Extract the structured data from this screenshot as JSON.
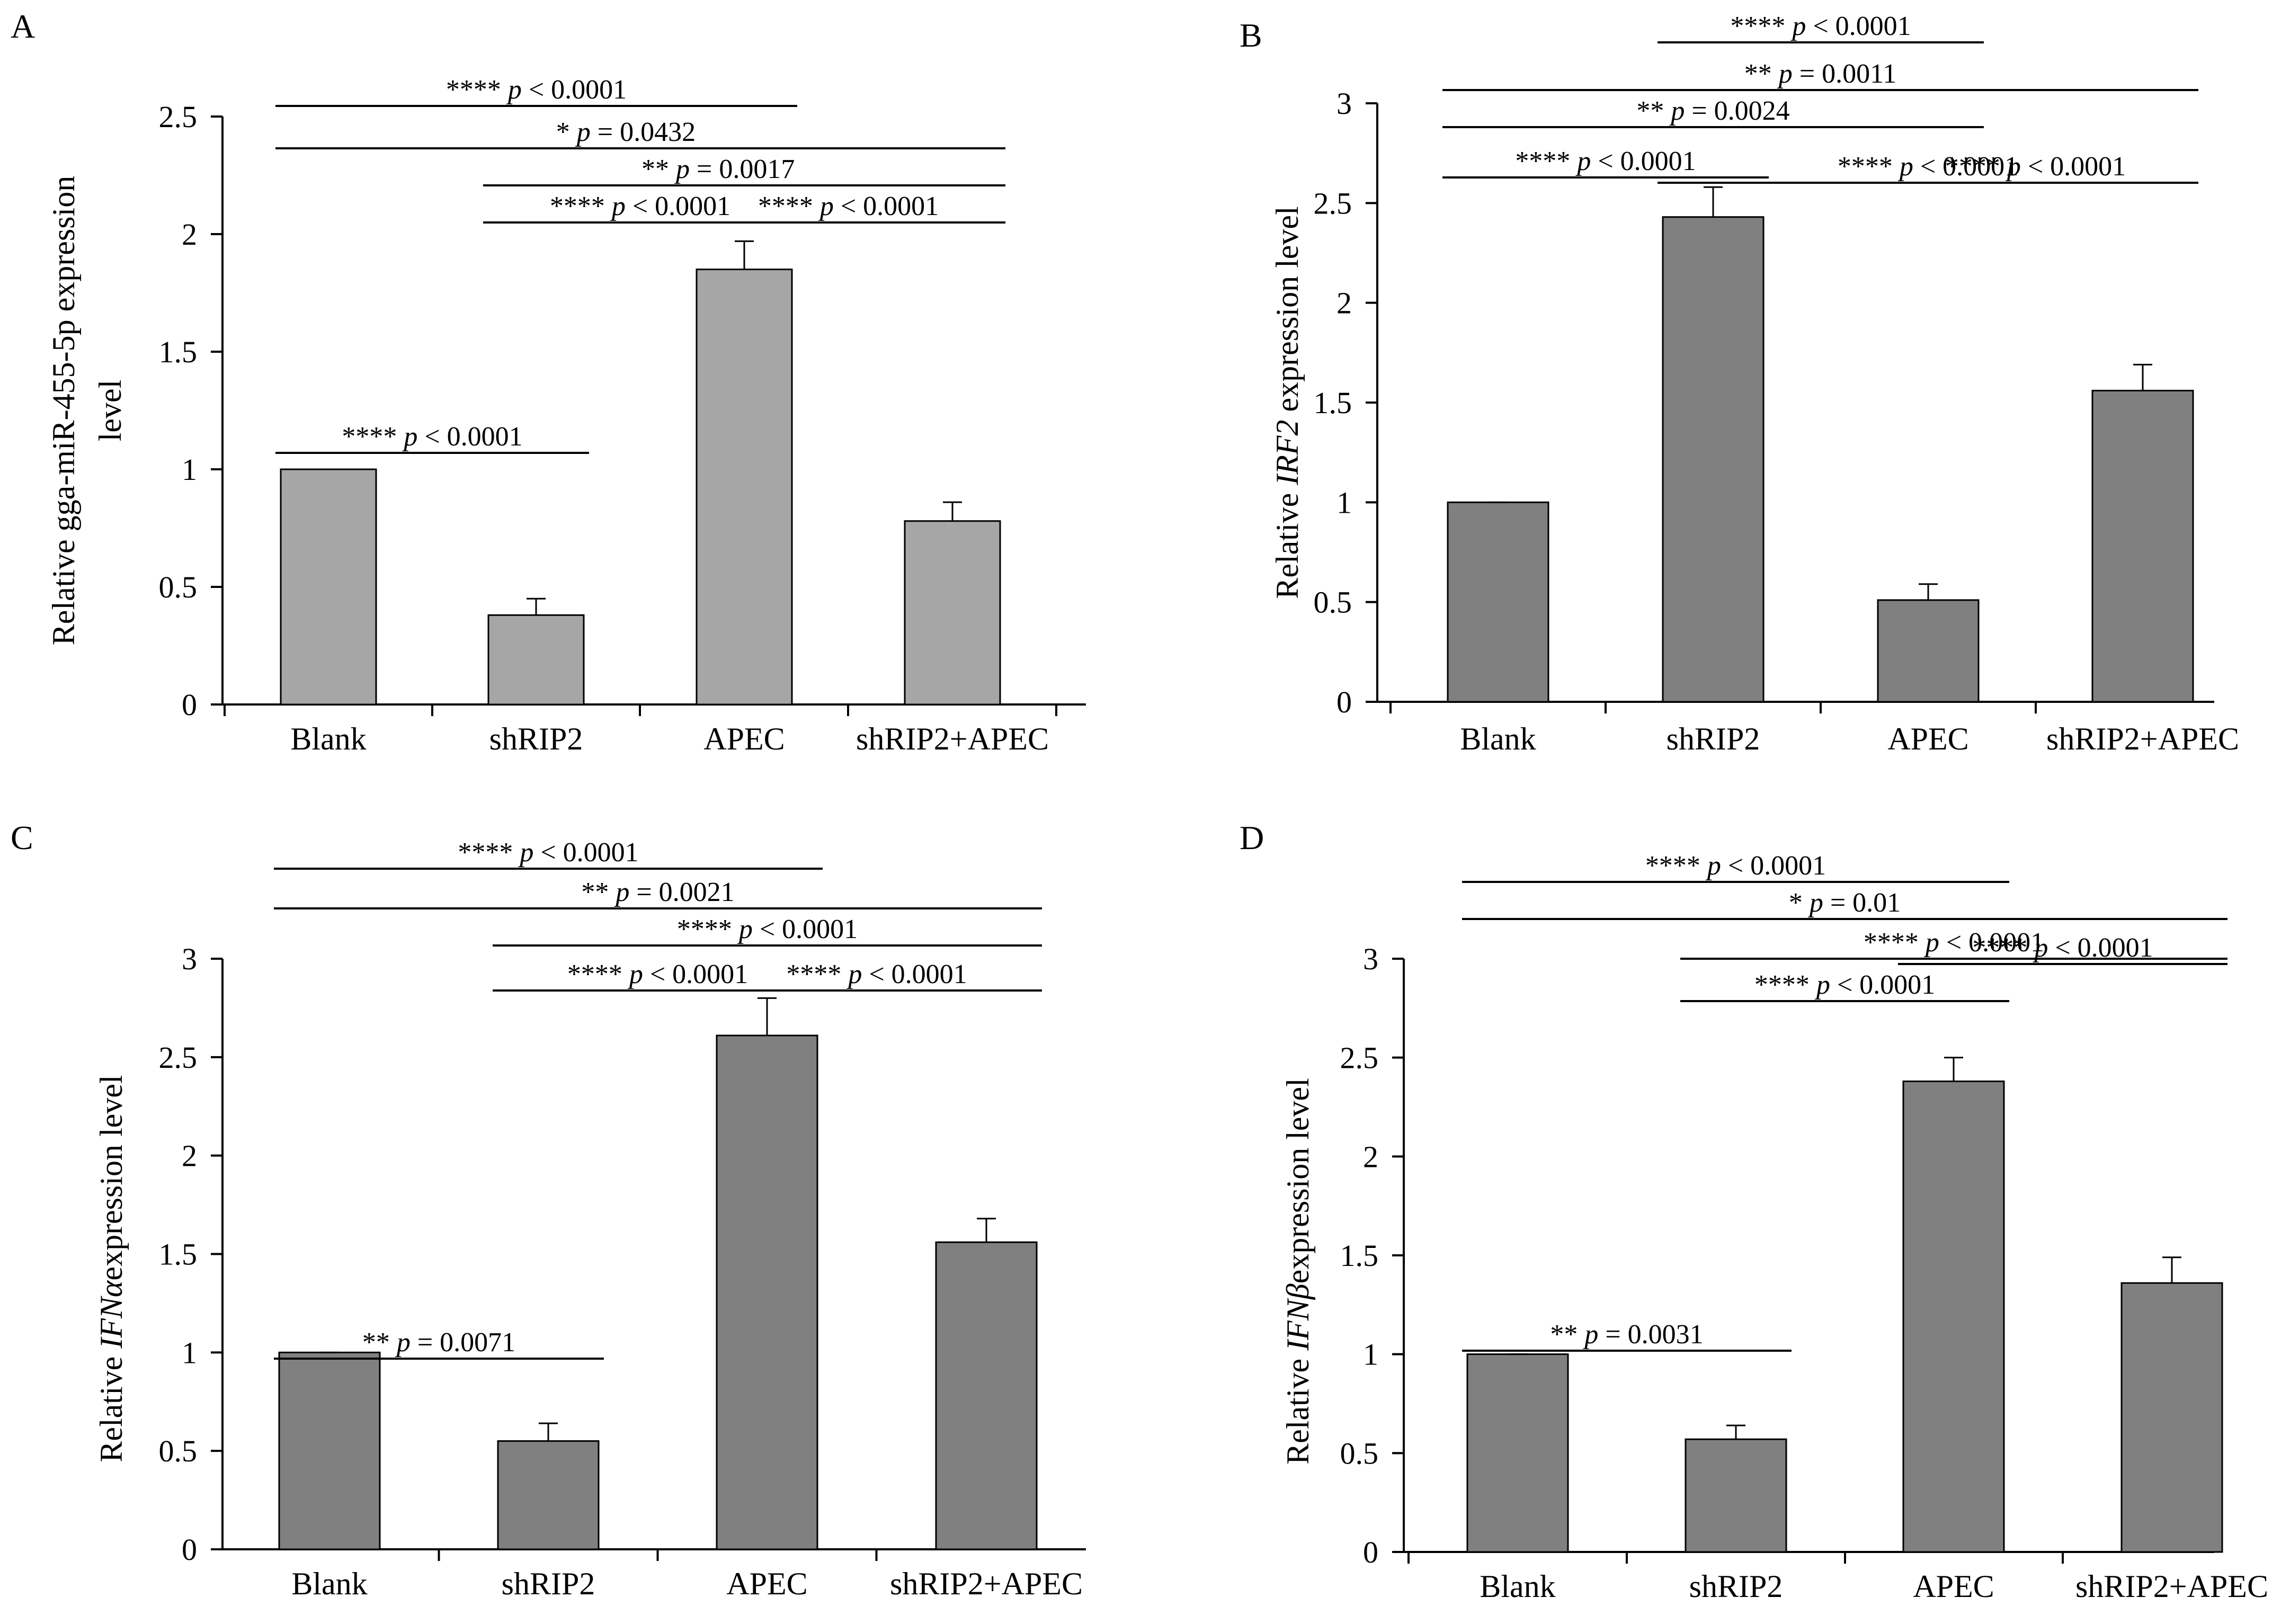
{
  "chart_data": [
    {
      "panel": "A",
      "type": "bar",
      "title": "",
      "xlabel": "",
      "ylabel_lines": [
        "Relative gga-miR-455-5p expression",
        "level"
      ],
      "ylabel_italic": "",
      "ylabel_after": "",
      "ylim": [
        0,
        2.5
      ],
      "yticks": [
        "0",
        "0.5",
        "1",
        "1.5",
        "2",
        "2.5"
      ],
      "ytick_values": [
        0,
        0.5,
        1,
        1.5,
        2,
        2.5
      ],
      "categories": [
        "Blank",
        "shRIP2",
        "APEC",
        "shRIP2+APEC"
      ],
      "values": [
        1.0,
        0.38,
        1.85,
        0.78
      ],
      "errors": [
        0.0,
        0.07,
        0.12,
        0.08
      ],
      "bar_color": "#a6a6a6",
      "comparisons": [
        {
          "stars": "****",
          "p": "p < 0.0001",
          "from": "Blank",
          "to": "APEC"
        },
        {
          "stars": "*",
          "p": "p = 0.0432",
          "from": "Blank",
          "to": "shRIP2+APEC"
        },
        {
          "stars": "**",
          "p": "p = 0.0017",
          "from": "shRIP2",
          "to": "shRIP2+APEC"
        },
        {
          "stars": "****",
          "p": "p < 0.0001",
          "from": "shRIP2",
          "to": "APEC"
        },
        {
          "stars": "****",
          "p": "p < 0.0001",
          "from": "APEC",
          "to": "shRIP2+APEC"
        },
        {
          "stars": "****",
          "p": "p < 0.0001",
          "from": "Blank",
          "to": "shRIP2"
        }
      ]
    },
    {
      "panel": "B",
      "type": "bar",
      "title": "",
      "xlabel": "",
      "ylabel_lines": [
        "Relative "
      ],
      "ylabel_italic": "IRF2",
      "ylabel_after": " expression level",
      "ylim": [
        0,
        3
      ],
      "yticks": [
        "0",
        "0.5",
        "1",
        "1.5",
        "2",
        "2.5",
        "3"
      ],
      "ytick_values": [
        0,
        0.5,
        1,
        1.5,
        2,
        2.5,
        3
      ],
      "categories": [
        "Blank",
        "shRIP2",
        "APEC",
        "shRIP2+APEC"
      ],
      "values": [
        1.0,
        2.43,
        0.51,
        1.56
      ],
      "errors": [
        0.0,
        0.15,
        0.08,
        0.13
      ],
      "bar_color": "#808080",
      "comparisons": [
        {
          "stars": "****",
          "p": "p < 0.0001",
          "from": "shRIP2",
          "to": "APEC"
        },
        {
          "stars": "**",
          "p": "p = 0.0011",
          "from": "Blank",
          "to": "shRIP2+APEC"
        },
        {
          "stars": "**",
          "p": "p = 0.0024",
          "from": "Blank",
          "to": "APEC"
        },
        {
          "stars": "****",
          "p": "p < 0.0001",
          "from": "Blank",
          "to": "shRIP2"
        },
        {
          "stars": "****",
          "p": "p < 0.0001",
          "from": "shRIP2",
          "to": "shRIP2+APEC"
        },
        {
          "stars": "****",
          "p": "p < 0.0001",
          "from": "APEC",
          "to": "shRIP2+APEC"
        }
      ]
    },
    {
      "panel": "C",
      "type": "bar",
      "title": "",
      "xlabel": "",
      "ylabel_lines": [
        "Relative "
      ],
      "ylabel_italic": "IFNα",
      "ylabel_after": "expression level",
      "ylim": [
        0,
        3
      ],
      "yticks": [
        "0",
        "0.5",
        "1",
        "1.5",
        "2",
        "2.5",
        "3"
      ],
      "ytick_values": [
        0,
        0.5,
        1,
        1.5,
        2,
        2.5,
        3
      ],
      "categories": [
        "Blank",
        "shRIP2",
        "APEC",
        "shRIP2+APEC"
      ],
      "values": [
        1.0,
        0.55,
        2.61,
        1.56
      ],
      "errors": [
        0.0,
        0.09,
        0.19,
        0.12
      ],
      "bar_color": "#808080",
      "comparisons": [
        {
          "stars": "****",
          "p": "p < 0.0001",
          "from": "Blank",
          "to": "APEC"
        },
        {
          "stars": "**",
          "p": "p = 0.0021",
          "from": "Blank",
          "to": "shRIP2+APEC"
        },
        {
          "stars": "****",
          "p": "p < 0.0001",
          "from": "shRIP2",
          "to": "shRIP2+APEC"
        },
        {
          "stars": "****",
          "p": "p < 0.0001",
          "from": "shRIP2",
          "to": "APEC"
        },
        {
          "stars": "****",
          "p": "p < 0.0001",
          "from": "APEC",
          "to": "shRIP2+APEC"
        },
        {
          "stars": "**",
          "p": "p = 0.0071",
          "from": "Blank",
          "to": "shRIP2"
        }
      ]
    },
    {
      "panel": "D",
      "type": "bar",
      "title": "",
      "xlabel": "",
      "ylabel_lines": [
        "Relative "
      ],
      "ylabel_italic": "IFNβ",
      "ylabel_after": "expression level",
      "ylim": [
        0,
        3
      ],
      "yticks": [
        "0",
        "0.5",
        "1",
        "1.5",
        "2",
        "2.5",
        "3"
      ],
      "ytick_values": [
        0,
        0.5,
        1,
        1.5,
        2,
        2.5,
        3
      ],
      "categories": [
        "Blank",
        "shRIP2",
        "APEC",
        "shRIP2+APEC"
      ],
      "values": [
        1.0,
        0.57,
        2.38,
        1.36
      ],
      "errors": [
        0.0,
        0.07,
        0.12,
        0.13
      ],
      "bar_color": "#808080",
      "comparisons": [
        {
          "stars": "****",
          "p": "p < 0.0001",
          "from": "Blank",
          "to": "APEC"
        },
        {
          "stars": "*",
          "p": "p = 0.01",
          "from": "Blank",
          "to": "shRIP2+APEC"
        },
        {
          "stars": "****",
          "p": "p < 0.0001",
          "from": "shRIP2",
          "to": "shRIP2+APEC"
        },
        {
          "stars": "****",
          "p": "p < 0.0001",
          "from": "APEC",
          "to": "shRIP2+APEC"
        },
        {
          "stars": "****",
          "p": "p < 0.0001",
          "from": "shRIP2",
          "to": "APEC"
        },
        {
          "stars": "**",
          "p": "p = 0.0031",
          "from": "Blank",
          "to": "shRIP2"
        }
      ]
    }
  ]
}
